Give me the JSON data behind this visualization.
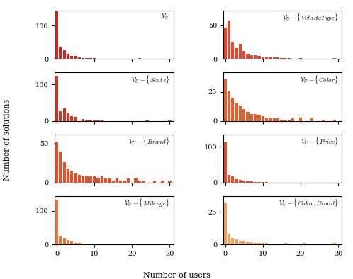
{
  "subplots": [
    {
      "title": "$\\mathcal{V}_U$",
      "color": "#c8291a",
      "yticks": [
        0,
        100
      ],
      "ylim": [
        0,
        145
      ],
      "data": [
        142,
        36,
        26,
        15,
        10,
        8,
        5,
        3,
        3,
        2,
        2,
        1,
        1,
        0,
        0,
        0,
        0,
        0,
        0,
        0,
        0,
        0,
        2,
        0,
        0,
        0,
        0,
        0,
        0,
        0,
        0
      ]
    },
    {
      "title": "$\\mathcal{V}_U - \\{VehicleType\\}$",
      "color": "#e04832",
      "yticks": [
        0,
        50
      ],
      "ylim": [
        0,
        72
      ],
      "data": [
        47,
        57,
        25,
        16,
        22,
        12,
        8,
        6,
        5,
        4,
        3,
        3,
        2,
        2,
        2,
        1,
        1,
        1,
        0,
        0,
        1,
        0,
        0,
        0,
        0,
        0,
        0,
        0,
        0,
        1,
        0
      ]
    },
    {
      "title": "$\\mathcal{V}_U - \\{Seats\\}$",
      "color": "#c83828",
      "yticks": [
        0,
        100
      ],
      "ylim": [
        0,
        133
      ],
      "data": [
        122,
        26,
        35,
        20,
        12,
        10,
        0,
        5,
        4,
        3,
        2,
        2,
        1,
        0,
        0,
        0,
        0,
        0,
        0,
        0,
        0,
        0,
        0,
        0,
        2,
        0,
        0,
        0,
        0,
        0,
        2
      ]
    },
    {
      "title": "$\\mathcal{V}_U - \\{Color\\}$",
      "color": "#e06030",
      "yticks": [
        0,
        25
      ],
      "ylim": [
        0,
        42
      ],
      "data": [
        36,
        26,
        20,
        16,
        13,
        10,
        8,
        6,
        6,
        5,
        4,
        3,
        2,
        2,
        2,
        1,
        1,
        1,
        2,
        0,
        3,
        0,
        0,
        2,
        0,
        0,
        1,
        0,
        0,
        1,
        0
      ]
    },
    {
      "title": "$\\mathcal{V}_U - \\{Brand\\}$",
      "color": "#e05028",
      "yticks": [
        0,
        50
      ],
      "ylim": [
        0,
        62
      ],
      "data": [
        52,
        40,
        26,
        18,
        15,
        12,
        10,
        8,
        8,
        8,
        8,
        6,
        8,
        5,
        5,
        3,
        5,
        3,
        3,
        5,
        0,
        5,
        3,
        3,
        0,
        0,
        3,
        0,
        3,
        0,
        3
      ]
    },
    {
      "title": "$\\mathcal{V}_U - \\{Price\\}$",
      "color": "#e05028",
      "yticks": [
        0,
        100
      ],
      "ylim": [
        0,
        135
      ],
      "data": [
        112,
        22,
        18,
        10,
        8,
        5,
        3,
        3,
        2,
        2,
        1,
        1,
        0,
        0,
        0,
        0,
        0,
        0,
        0,
        0,
        0,
        0,
        0,
        0,
        0,
        0,
        0,
        0,
        0,
        0,
        0
      ]
    },
    {
      "title": "$\\mathcal{V}_U - \\{Mileage\\}$",
      "color": "#e07840",
      "yticks": [
        0,
        100
      ],
      "ylim": [
        0,
        143
      ],
      "data": [
        132,
        26,
        20,
        12,
        8,
        5,
        4,
        3,
        2,
        1,
        1,
        1,
        0,
        0,
        0,
        0,
        0,
        0,
        0,
        0,
        0,
        0,
        0,
        0,
        0,
        0,
        0,
        0,
        0,
        0,
        0
      ]
    },
    {
      "title": "$\\mathcal{V}_U - \\{Color, Brand\\}$",
      "color": "#f0a060",
      "yticks": [
        0,
        25
      ],
      "ylim": [
        0,
        37
      ],
      "data": [
        32,
        8,
        5,
        4,
        3,
        3,
        2,
        2,
        1,
        1,
        1,
        1,
        0,
        0,
        0,
        0,
        1,
        0,
        0,
        0,
        0,
        1,
        0,
        0,
        0,
        0,
        0,
        0,
        0,
        1,
        0
      ]
    }
  ],
  "xlabel": "Number of users",
  "ylabel": "Number of solutions",
  "xlim": [
    -0.5,
    31
  ],
  "xticks": [
    0,
    10,
    20,
    30
  ],
  "bar_width": 0.8
}
